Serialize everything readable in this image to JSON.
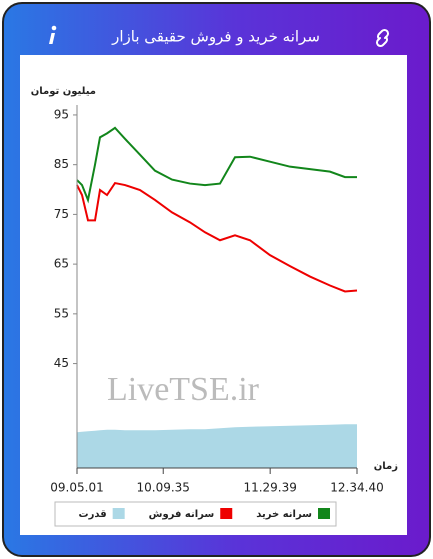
{
  "header": {
    "title": "سرانه خرید و فروش حقیقی بازار"
  },
  "chart_data": {
    "type": "line",
    "y_label": "میلیون تومان",
    "x_label": "زمان",
    "watermark": "LiveTSE.ir",
    "x": [
      32701,
      32926,
      33195,
      33510,
      33734,
      34049,
      34408,
      34857,
      35530,
      36203,
      36970,
      37776,
      38451,
      39125,
      39799,
      40473,
      41372,
      42270,
      43169,
      44067,
      44741,
      45280
    ],
    "xlim": [
      32701,
      45280
    ],
    "xticks": [
      {
        "value": 32701,
        "label": "09.05.01"
      },
      {
        "value": 36575,
        "label": "10.09.35"
      },
      {
        "value": 41379,
        "label": "11.29.39"
      },
      {
        "value": 45280,
        "label": "12.34.40"
      }
    ],
    "ylim": [
      24,
      97
    ],
    "yticks": [
      45,
      55,
      65,
      75,
      85,
      95
    ],
    "grid": false,
    "series": [
      {
        "name": "سرانه خرید",
        "color": "#12861b",
        "kind": "line",
        "values": [
          81.9,
          80.9,
          77.9,
          85,
          90.5,
          91.3,
          92.4,
          90.2,
          87,
          83.8,
          82,
          81.2,
          80.9,
          81.2,
          86.5,
          86.6,
          85.6,
          84.6,
          84.1,
          83.6,
          82.5,
          82.5
        ]
      },
      {
        "name": "سرانه فروش",
        "color": "#ee0000",
        "kind": "line",
        "values": [
          80.9,
          78.9,
          73.8,
          73.8,
          79.9,
          78.9,
          81.3,
          80.9,
          79.9,
          77.9,
          75.4,
          73.4,
          71.4,
          69.8,
          70.8,
          69.8,
          66.8,
          64.6,
          62.5,
          60.7,
          59.5,
          59.7
        ]
      },
      {
        "name": "قدرت",
        "color": "#acd8e6",
        "kind": "area",
        "values": [
          31.2,
          31.3,
          31.4,
          31.5,
          31.6,
          31.7,
          31.7,
          31.6,
          31.6,
          31.6,
          31.7,
          31.8,
          31.8,
          32.0,
          32.2,
          32.3,
          32.4,
          32.5,
          32.6,
          32.7,
          32.8,
          32.8
        ]
      }
    ]
  }
}
